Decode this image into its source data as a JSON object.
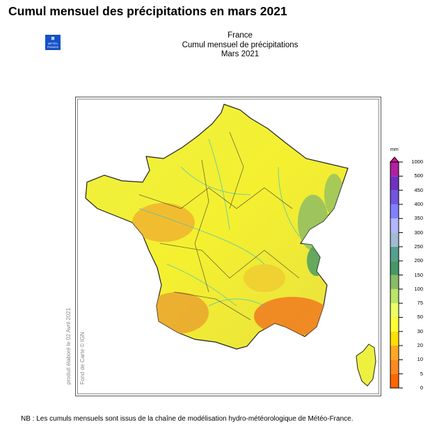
{
  "title": "Cumul mensuel des précipitations en mars 2021",
  "logo": {
    "line1": "MÉTÉO",
    "line2": "FRANCE"
  },
  "map_header": {
    "region": "France",
    "product": "Cumul mensuel de précipitations",
    "period": "Mars 2021"
  },
  "credits": {
    "produced": "produit élaboré le 02 Avril 2021",
    "basemap": "Fond de Carte © IGN"
  },
  "legend": {
    "unit": "mm",
    "labels": [
      "0",
      "5",
      "10",
      "20",
      "30",
      "50",
      "75",
      "100",
      "150",
      "200",
      "250",
      "300",
      "350",
      "400",
      "450",
      "500",
      "1000"
    ],
    "colors": [
      "#ff6600",
      "#ff8822",
      "#ffaa22",
      "#ffe000",
      "#ffff33",
      "#eeff66",
      "#bbe566",
      "#88bb66",
      "#449966",
      "#55a08a",
      "#a0bcd4",
      "#b4b4ff",
      "#8080ff",
      "#7055e0",
      "#7030c0",
      "#b020a0"
    ],
    "arrow_color": "#e0109a"
  },
  "note": "NB : Les cumuls mensuels sont issus de la chaîne de modélisation hydro-météorologique de Météo-France."
}
